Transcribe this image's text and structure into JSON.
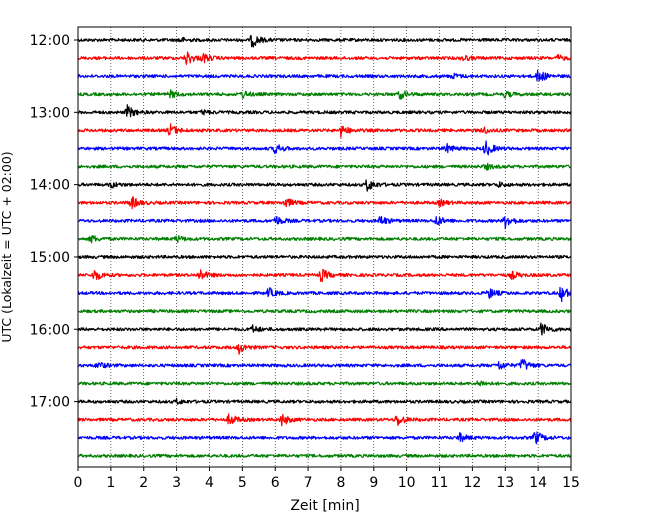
{
  "chart_data": {
    "type": "line",
    "subtype": "helicorder-seismogram",
    "xlabel": "Zeit  [min]",
    "ylabel": "UTC (Lokalzeit = UTC + 02:00)",
    "xlim": [
      0,
      15
    ],
    "x_ticks": [
      "0",
      "1",
      "2",
      "3",
      "4",
      "5",
      "6",
      "7",
      "8",
      "9",
      "10",
      "11",
      "12",
      "13",
      "14",
      "15"
    ],
    "y_tick_labels": [
      "12:00",
      "13:00",
      "14:00",
      "15:00",
      "16:00",
      "17:00"
    ],
    "grid": "vertical dotted at each minute",
    "colors": [
      "#000000",
      "#ff0000",
      "#0000ff",
      "#008000"
    ],
    "traces": [
      {
        "time": "12:00",
        "color": "#000000",
        "events": [
          {
            "t": 5.3,
            "amp": 1.0
          },
          {
            "t": 3.1,
            "amp": 0.35
          }
        ]
      },
      {
        "time": "12:15",
        "color": "#ff0000",
        "events": [
          {
            "t": 3.3,
            "amp": 1.0
          },
          {
            "t": 3.8,
            "amp": 0.6
          },
          {
            "t": 11.7,
            "amp": 0.4
          },
          {
            "t": 14.6,
            "amp": 0.35
          }
        ]
      },
      {
        "time": "12:30",
        "color": "#0000ff",
        "events": [
          {
            "t": 14.0,
            "amp": 1.0
          },
          {
            "t": 11.4,
            "amp": 0.35
          }
        ]
      },
      {
        "time": "12:45",
        "color": "#008000",
        "events": [
          {
            "t": 2.8,
            "amp": 0.5
          },
          {
            "t": 5.0,
            "amp": 0.5
          },
          {
            "t": 9.8,
            "amp": 0.6
          },
          {
            "t": 13.0,
            "amp": 0.4
          }
        ]
      },
      {
        "time": "13:00",
        "color": "#000000",
        "events": [
          {
            "t": 1.5,
            "amp": 0.9
          },
          {
            "t": 3.8,
            "amp": 0.3
          }
        ]
      },
      {
        "time": "13:15",
        "color": "#ff0000",
        "events": [
          {
            "t": 2.8,
            "amp": 0.9
          },
          {
            "t": 8.0,
            "amp": 0.8
          },
          {
            "t": 12.3,
            "amp": 0.5
          }
        ]
      },
      {
        "time": "13:30",
        "color": "#0000ff",
        "events": [
          {
            "t": 12.4,
            "amp": 1.1
          },
          {
            "t": 6.0,
            "amp": 0.7
          },
          {
            "t": 11.2,
            "amp": 0.6
          }
        ]
      },
      {
        "time": "13:45",
        "color": "#008000",
        "events": [
          {
            "t": 12.4,
            "amp": 0.4
          }
        ]
      },
      {
        "time": "14:00",
        "color": "#000000",
        "events": [
          {
            "t": 8.8,
            "amp": 0.9
          },
          {
            "t": 1.0,
            "amp": 0.4
          },
          {
            "t": 12.8,
            "amp": 0.3
          }
        ]
      },
      {
        "time": "14:15",
        "color": "#ff0000",
        "events": [
          {
            "t": 1.6,
            "amp": 1.0
          },
          {
            "t": 6.3,
            "amp": 0.7
          },
          {
            "t": 11.0,
            "amp": 0.4
          }
        ]
      },
      {
        "time": "14:30",
        "color": "#0000ff",
        "events": [
          {
            "t": 13.0,
            "amp": 1.0
          },
          {
            "t": 6.0,
            "amp": 0.7
          },
          {
            "t": 9.2,
            "amp": 0.7
          },
          {
            "t": 10.9,
            "amp": 0.7
          }
        ]
      },
      {
        "time": "14:45",
        "color": "#008000",
        "events": [
          {
            "t": 0.4,
            "amp": 0.5
          },
          {
            "t": 3.0,
            "amp": 0.4
          }
        ]
      },
      {
        "time": "15:00",
        "color": "#000000",
        "events": []
      },
      {
        "time": "15:15",
        "color": "#ff0000",
        "events": [
          {
            "t": 0.5,
            "amp": 0.8
          },
          {
            "t": 3.7,
            "amp": 0.8
          },
          {
            "t": 7.4,
            "amp": 0.9
          },
          {
            "t": 13.2,
            "amp": 0.5
          }
        ]
      },
      {
        "time": "15:30",
        "color": "#0000ff",
        "events": [
          {
            "t": 14.7,
            "amp": 1.1
          },
          {
            "t": 5.8,
            "amp": 0.7
          },
          {
            "t": 12.5,
            "amp": 0.7
          }
        ]
      },
      {
        "time": "15:45",
        "color": "#008000",
        "events": []
      },
      {
        "time": "16:00",
        "color": "#000000",
        "events": [
          {
            "t": 14.1,
            "amp": 0.9
          },
          {
            "t": 5.3,
            "amp": 0.5
          }
        ]
      },
      {
        "time": "16:15",
        "color": "#ff0000",
        "events": [
          {
            "t": 4.9,
            "amp": 0.8
          }
        ]
      },
      {
        "time": "16:30",
        "color": "#0000ff",
        "events": [
          {
            "t": 13.5,
            "amp": 1.0
          },
          {
            "t": 12.8,
            "amp": 0.6
          },
          {
            "t": 0.6,
            "amp": 0.5
          }
        ]
      },
      {
        "time": "16:45",
        "color": "#008000",
        "events": [
          {
            "t": 12.2,
            "amp": 0.4
          }
        ]
      },
      {
        "time": "17:00",
        "color": "#000000",
        "events": [
          {
            "t": 3.0,
            "amp": 0.3
          }
        ]
      },
      {
        "time": "17:15",
        "color": "#ff0000",
        "events": [
          {
            "t": 4.6,
            "amp": 0.8
          },
          {
            "t": 6.2,
            "amp": 0.8
          },
          {
            "t": 9.7,
            "amp": 0.9
          }
        ]
      },
      {
        "time": "17:30",
        "color": "#0000ff",
        "events": [
          {
            "t": 13.9,
            "amp": 1.0
          },
          {
            "t": 11.6,
            "amp": 0.6
          }
        ]
      },
      {
        "time": "17:45",
        "color": "#008000",
        "events": []
      }
    ]
  }
}
